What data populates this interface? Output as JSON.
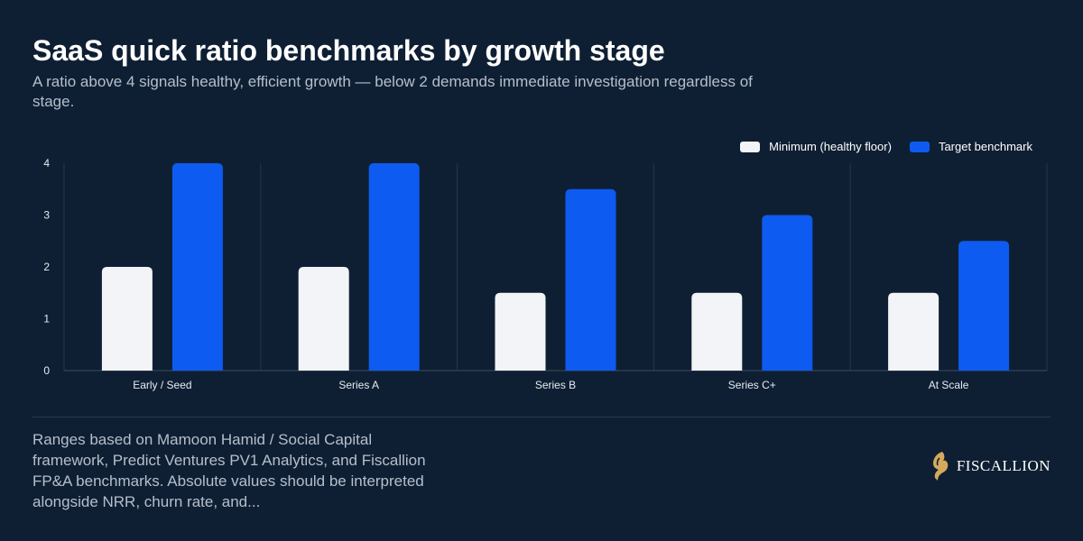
{
  "header": {
    "title": "SaaS quick ratio benchmarks by growth stage",
    "subtitle": "A ratio above 4 signals healthy, efficient growth — below 2 demands immediate investigation regardless of stage."
  },
  "footer": {
    "note": "Ranges based on Mamoon Hamid / Social Capital framework, Predict Ventures PV1 Analytics, and Fiscallion FP&A benchmarks. Absolute values should be interpreted alongside NRR, churn rate, and...",
    "brand": "FISCALLION",
    "logo_icon": "horse-head-logo-icon"
  },
  "colors": {
    "background": "#0f1f33",
    "minimum": "#f2f4f7",
    "target": "#0d5bf0",
    "axis_text": "#e6ebf1",
    "grid": "#24364b",
    "gold": "#d4a95c"
  },
  "chart_data": {
    "type": "bar",
    "categories": [
      "Early / Seed",
      "Series A",
      "Series B",
      "Series C+",
      "At Scale"
    ],
    "series": [
      {
        "name": "Minimum (healthy floor)",
        "values": [
          2,
          2,
          1.5,
          1.5,
          1.5
        ]
      },
      {
        "name": "Target benchmark",
        "values": [
          4,
          4,
          3.5,
          3,
          2.5
        ]
      }
    ],
    "ylim": [
      0,
      4
    ],
    "yticks": [
      0,
      1,
      2,
      3,
      4
    ],
    "legend": "top-right",
    "grid": "vertical category separators"
  }
}
